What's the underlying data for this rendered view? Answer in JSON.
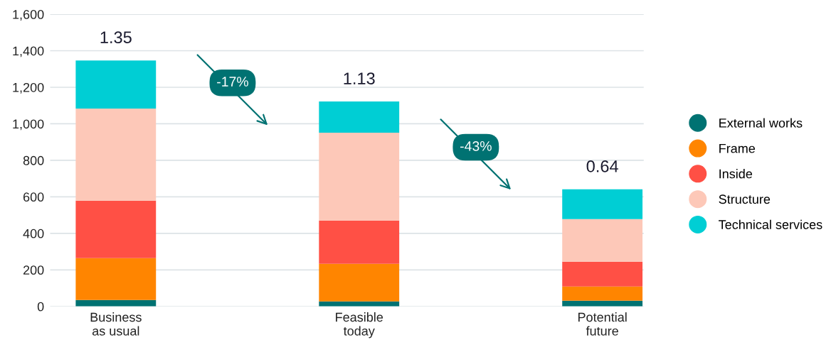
{
  "chart_data": {
    "type": "bar",
    "stacked": true,
    "categories": [
      "Business\nas usual",
      "Feasible\ntoday",
      "Potential\nfuture"
    ],
    "series": [
      {
        "name": "External works",
        "color": "#007272",
        "values": [
          35,
          27,
          31
        ]
      },
      {
        "name": "Frame",
        "color": "#ff8500",
        "values": [
          229,
          206,
          78
        ]
      },
      {
        "name": "Inside",
        "color": "#ff5045",
        "values": [
          315,
          237,
          136
        ]
      },
      {
        "name": "Structure",
        "color": "#fdc8b8",
        "values": [
          504,
          481,
          233
        ]
      },
      {
        "name": "Technical services",
        "color": "#00ced4",
        "values": [
          264,
          171,
          163
        ]
      }
    ],
    "annotations": [
      "-17%",
      "-43%",
      {
        "text": "1.35",
        "x": "Business\nas usual",
        "y": 1347
      },
      {
        "text": "1.13",
        "x": "Feasible\ntoday",
        "y": 1122
      },
      {
        "text": "0.64",
        "x": "Potential\nfuture",
        "y": 641
      }
    ],
    "ylim": [
      0,
      1600
    ],
    "yticks": [
      0,
      200,
      400,
      600,
      800,
      {
        "value": 1000,
        "label": "1,000"
      },
      {
        "value": 1200,
        "label": "1,200"
      },
      {
        "value": 1400,
        "label": "1,400"
      },
      {
        "value": 1600,
        "label": "1,600"
      }
    ],
    "grid": "y",
    "legend": "right"
  }
}
